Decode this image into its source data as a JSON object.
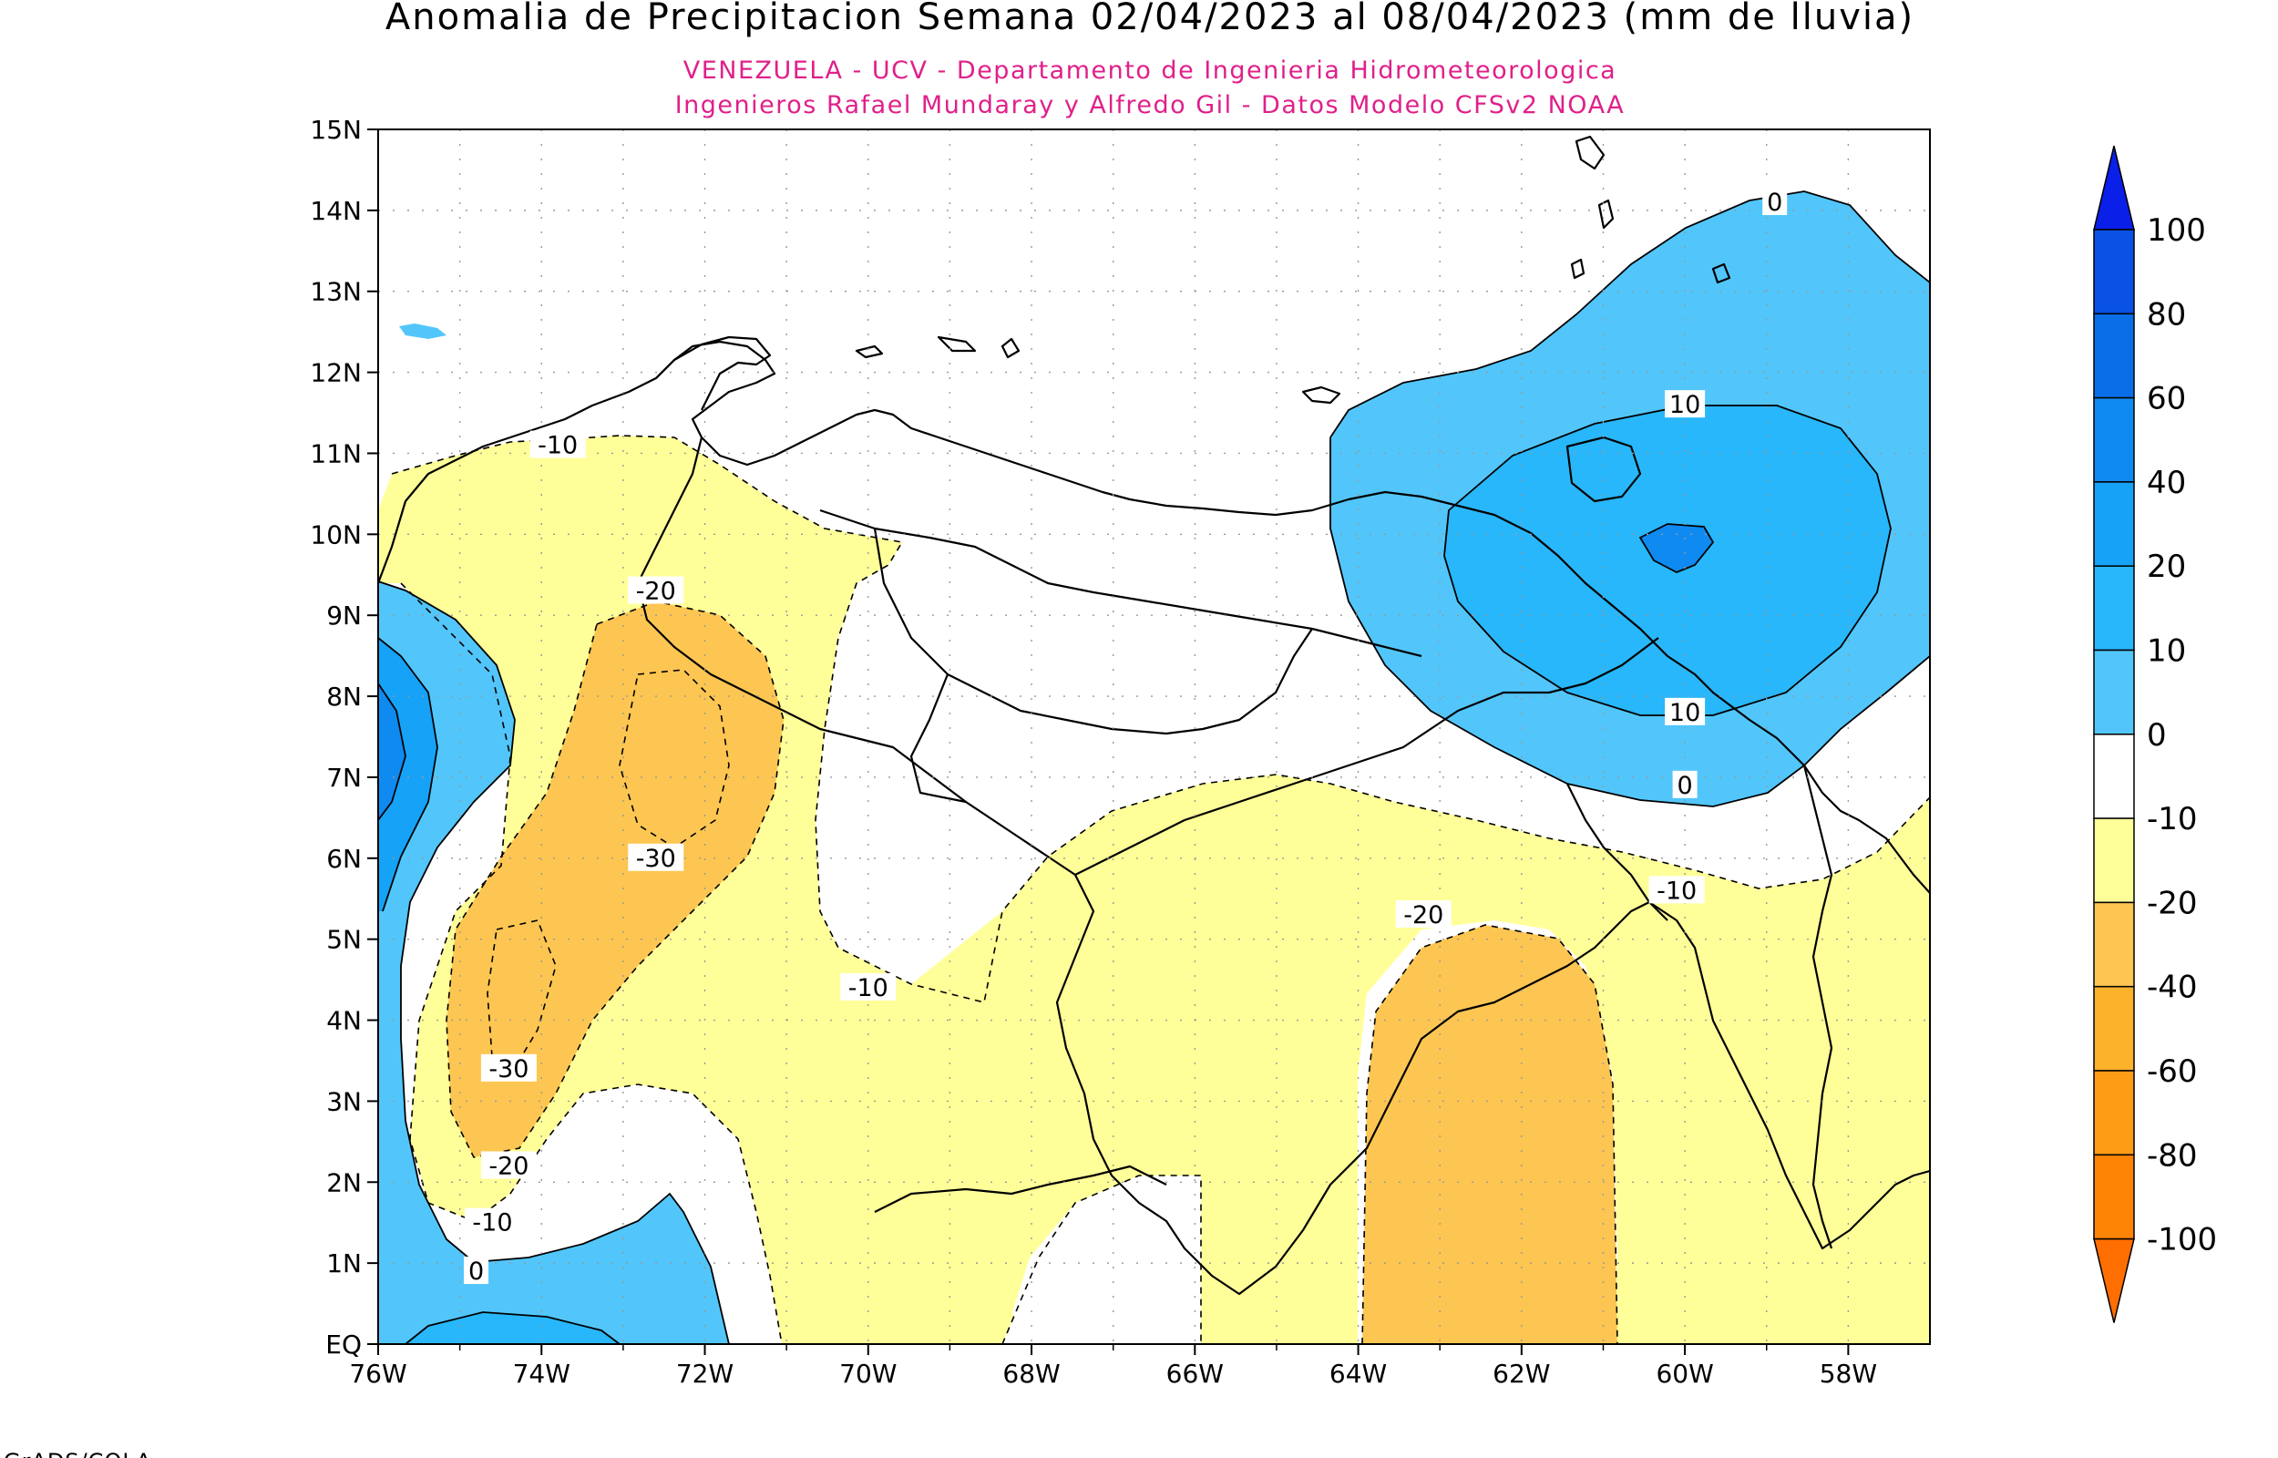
{
  "title": "Anomalia de Precipitacion Semana 02/04/2023 al 08/04/2023 (mm de lluvia)",
  "subtitle_lines": [
    "VENEZUELA - UCV - Departamento de Ingenieria Hidrometeorologica",
    "Ingenieros Rafael Mundaray y Alfredo Gil - Datos Modelo CFSv2 NOAA"
  ],
  "map": {
    "lon_range": [
      -76,
      -57
    ],
    "lat_range": [
      0,
      15
    ],
    "x_tick_labels": [
      "76W",
      "74W",
      "72W",
      "70W",
      "68W",
      "66W",
      "64W",
      "62W",
      "60W",
      "58W"
    ],
    "y_tick_labels": [
      "EQ",
      "1N",
      "2N",
      "3N",
      "4N",
      "5N",
      "6N",
      "7N",
      "8N",
      "9N",
      "10N",
      "11N",
      "12N",
      "13N",
      "14N",
      "15N"
    ],
    "grid": true,
    "contour_labels": [
      {
        "text": "0",
        "lon": -58.9,
        "lat": 14.1
      },
      {
        "text": "10",
        "lon": -60.0,
        "lat": 11.6
      },
      {
        "text": "10",
        "lon": -60.0,
        "lat": 7.8
      },
      {
        "text": "0",
        "lon": -60.0,
        "lat": 6.9
      },
      {
        "text": "-10",
        "lon": -60.1,
        "lat": 5.6
      },
      {
        "text": "-10",
        "lon": -73.8,
        "lat": 11.1
      },
      {
        "text": "-20",
        "lon": -72.6,
        "lat": 9.3
      },
      {
        "text": "-30",
        "lon": -72.6,
        "lat": 6.0
      },
      {
        "text": "-10",
        "lon": -70.0,
        "lat": 4.4
      },
      {
        "text": "-20",
        "lon": -63.2,
        "lat": 5.3
      },
      {
        "text": "-30",
        "lon": -74.4,
        "lat": 3.4
      },
      {
        "text": "-20",
        "lon": -74.4,
        "lat": 2.2
      },
      {
        "text": "-10",
        "lon": -74.6,
        "lat": 1.5
      },
      {
        "text": "0",
        "lon": -74.8,
        "lat": 0.9
      }
    ]
  },
  "colorbar": {
    "labels": [
      "100",
      "80",
      "60",
      "40",
      "20",
      "10",
      "0",
      "-10",
      "-20",
      "-40",
      "-60",
      "-80",
      "-100"
    ],
    "colors": [
      "#0a1fe8",
      "#0a52e6",
      "#0b6ee9",
      "#0f8af0",
      "#16a3f7",
      "#28b7fa",
      "#52c6fb",
      "#ffffff",
      "#ffff99",
      "#fdc652",
      "#fdb22c",
      "#fe9c15",
      "#fe8405",
      "#fe6e00"
    ],
    "colors_note": "top arrow to bottom arrow"
  },
  "palette": {
    "blue_light": "#52c6fb",
    "blue_mid": "#28b7fa",
    "blue_dark": "#16a3f7",
    "blue_core": "#0f8af0",
    "yellow": "#ffff99",
    "orange": "#fdc652"
  },
  "footer": "GrADS/COLA"
}
